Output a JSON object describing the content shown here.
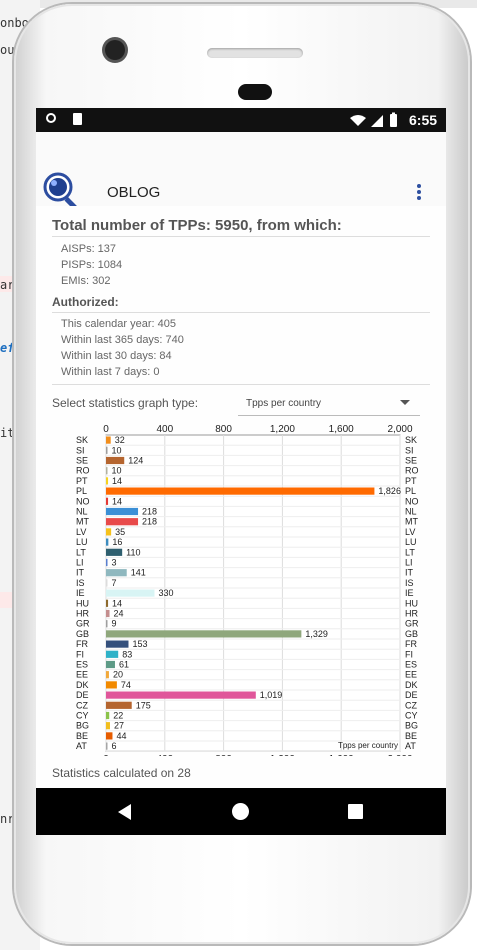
{
  "background": {
    "snippets": [
      "onboa",
      "ourc",
      "ar",
      "efe",
      "it",
      "nr"
    ]
  },
  "statusbar": {
    "time": "6:55"
  },
  "appbar": {
    "title": "OBLOG",
    "logo_text": "Oblog",
    "menu_icon": "overflow-vertical-icon"
  },
  "summary": {
    "total": "Total number of TPPs: 5950, from which:",
    "aisps": "AISPs: 137",
    "pisps": "PISPs: 1084",
    "emis": "EMIs: 302"
  },
  "authorized": {
    "heading": "Authorized:",
    "calendar_year": "This calendar year: 405",
    "last365": "Within last 365 days: 740",
    "last30": "Within last 30 days: 84",
    "last7": "Within last 7 days: 0"
  },
  "graph_select": {
    "label": "Select statistics graph type:",
    "value": "Tpps per country"
  },
  "footer": {
    "calculated": "Statistics calculated on 28"
  },
  "nav": {
    "back_icon": "back-icon",
    "home_icon": "home-icon",
    "recent_icon": "recent-apps-icon"
  },
  "chart_data": {
    "type": "bar",
    "orientation": "horizontal",
    "categories": [
      "SK",
      "SI",
      "SE",
      "RO",
      "PT",
      "PL",
      "NO",
      "NL",
      "MT",
      "LV",
      "LU",
      "LT",
      "LI",
      "IT",
      "IS",
      "IE",
      "HU",
      "HR",
      "GR",
      "GB",
      "FR",
      "FI",
      "ES",
      "EE",
      "DK",
      "DE",
      "CZ",
      "CY",
      "BG",
      "BE",
      "AT"
    ],
    "values": [
      32,
      10,
      124,
      10,
      14,
      1826,
      14,
      218,
      218,
      35,
      16,
      110,
      3,
      141,
      7,
      330,
      14,
      24,
      9,
      1329,
      153,
      83,
      61,
      20,
      74,
      1019,
      175,
      22,
      27,
      44,
      6
    ],
    "value_labels": [
      "32",
      "10",
      "124",
      "10",
      "14",
      "1,826",
      "14",
      "218",
      "218",
      "35",
      "16",
      "110",
      "3",
      "141",
      "7",
      "330",
      "14",
      "24",
      "9",
      "1,329",
      "153",
      "83",
      "61",
      "20",
      "74",
      "1,019",
      "175",
      "22",
      "27",
      "44",
      "6"
    ],
    "colors": [
      "#f28e1c",
      "#9e9e9e",
      "#b5652f",
      "#b2b2a0",
      "#f5d21e",
      "#ff6a00",
      "#e53935",
      "#3b8fd6",
      "#e84a4a",
      "#f6c21c",
      "#3c8cbf",
      "#2e5f6f",
      "#5a7fcf",
      "#8fb8bf",
      "#dcdcdc",
      "#d8f4f4",
      "#8e6a2d",
      "#c48e8e",
      "#9f9f9f",
      "#8fa77c",
      "#34507c",
      "#2fb2c8",
      "#5e9b87",
      "#f2a93b",
      "#f28a00",
      "#e0569a",
      "#b5652f",
      "#8bc34a",
      "#f2bf1e",
      "#e65c00",
      "#a6a6a6"
    ],
    "ticks": [
      "0",
      "400",
      "800",
      "1,200",
      "1,600",
      "2,000"
    ],
    "xlim": [
      0,
      2000
    ],
    "legend": "Tpps per country",
    "grid": true
  }
}
